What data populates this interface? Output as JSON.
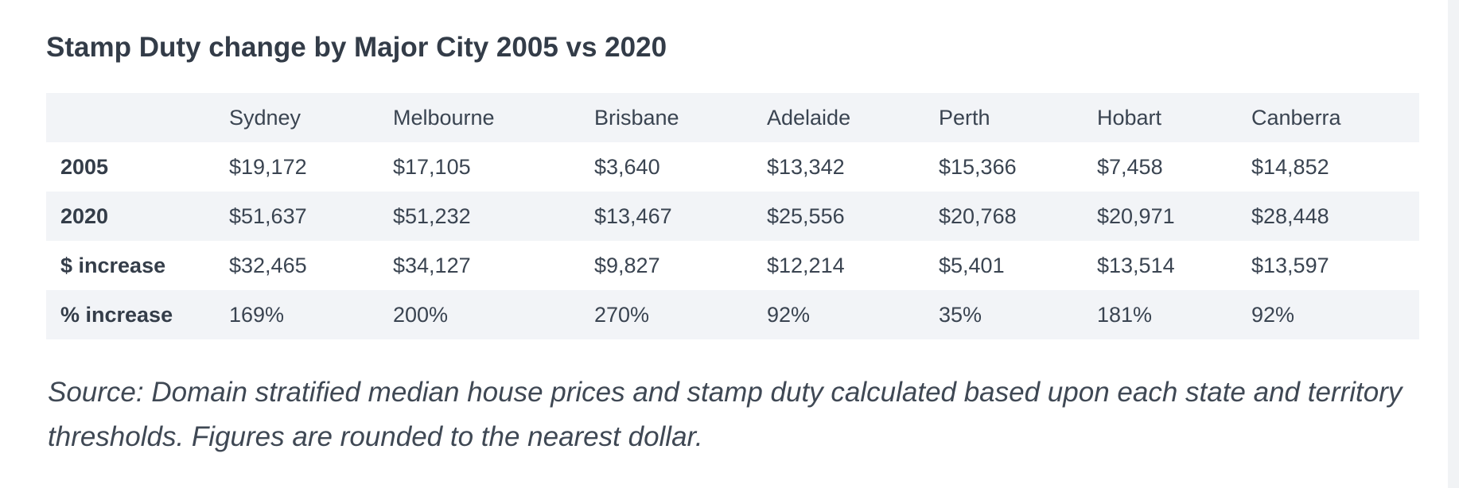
{
  "title": "Stamp Duty change by Major City 2005 vs 2020",
  "table": {
    "columns": [
      "",
      "Sydney",
      "Melbourne",
      "Brisbane",
      "Adelaide",
      "Perth",
      "Hobart",
      "Canberra"
    ],
    "rows": [
      {
        "label": "2005",
        "values": [
          "$19,172",
          "$17,105",
          "$3,640",
          "$13,342",
          "$15,366",
          "$7,458",
          "$14,852"
        ]
      },
      {
        "label": "2020",
        "values": [
          "$51,637",
          "$51,232",
          "$13,467",
          "$25,556",
          "$20,768",
          "$20,971",
          "$28,448"
        ]
      },
      {
        "label": "$ increase",
        "values": [
          "$32,465",
          "$34,127",
          "$9,827",
          "$12,214",
          "$5,401",
          "$13,514",
          "$13,597"
        ]
      },
      {
        "label": "% increase",
        "values": [
          "169%",
          "200%",
          "270%",
          "92%",
          "35%",
          "181%",
          "92%"
        ]
      }
    ]
  },
  "source": "Source: Domain stratified median house prices and stamp duty calculated based upon each state and territory thresholds. Figures are rounded to the nearest dollar."
}
